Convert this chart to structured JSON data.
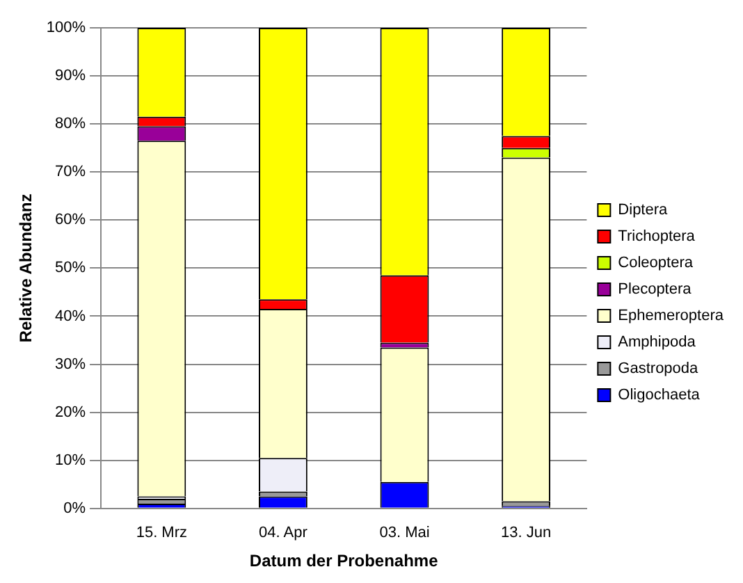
{
  "chart_data": {
    "type": "bar",
    "stacked": true,
    "xlabel": "Datum der Probenahme",
    "ylabel": "Relative Abundanz",
    "categories": [
      "15. Mrz",
      "04. Apr",
      "03. Mai",
      "13. Jun"
    ],
    "series": [
      {
        "name": "Oligochaeta",
        "color": "#0000ff",
        "values": [
          1,
          2.5,
          5.5,
          0.5
        ]
      },
      {
        "name": "Gastropoda",
        "color": "#999999",
        "values": [
          1,
          1,
          0,
          1
        ]
      },
      {
        "name": "Amphipoda",
        "color": "#eeeef8",
        "values": [
          0.5,
          7,
          0,
          0
        ]
      },
      {
        "name": "Ephemeroptera",
        "color": "#ffffcc",
        "values": [
          74,
          31,
          28,
          71.5
        ]
      },
      {
        "name": "Plecoptera",
        "color": "#990099",
        "values": [
          3,
          0,
          1,
          0
        ]
      },
      {
        "name": "Coleoptera",
        "color": "#ccff00",
        "values": [
          0,
          0,
          0,
          2
        ]
      },
      {
        "name": "Trichoptera",
        "color": "#ff0000",
        "values": [
          2,
          2,
          14,
          2.5
        ]
      },
      {
        "name": "Diptera",
        "color": "#ffff00",
        "values": [
          18.5,
          56.5,
          51.5,
          22.5
        ]
      }
    ],
    "ylim": [
      0,
      100
    ],
    "yticks": [
      {
        "value": 0,
        "label": "0%"
      },
      {
        "value": 10,
        "label": "10%"
      },
      {
        "value": 20,
        "label": "20%"
      },
      {
        "value": 30,
        "label": "30%"
      },
      {
        "value": 40,
        "label": "40%"
      },
      {
        "value": 50,
        "label": "50%"
      },
      {
        "value": 60,
        "label": "60%"
      },
      {
        "value": 70,
        "label": "70%"
      },
      {
        "value": 80,
        "label": "80%"
      },
      {
        "value": 90,
        "label": "90%"
      },
      {
        "value": 100,
        "label": "100%"
      }
    ],
    "grid": "y",
    "legend": "right"
  }
}
